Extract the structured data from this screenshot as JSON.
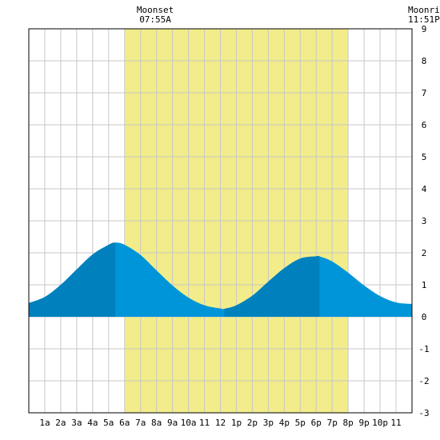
{
  "chart_data": {
    "type": "area",
    "title": "",
    "xlabel": "",
    "ylabel": "",
    "x_unit": "hour of day",
    "xlim": [
      0,
      24
    ],
    "ylim": [
      -3,
      9
    ],
    "y_ticks": [
      -3,
      -2,
      -1,
      0,
      1,
      2,
      3,
      4,
      5,
      6,
      7,
      8,
      9
    ],
    "x_ticks": [
      {
        "x": 1,
        "label": "1a"
      },
      {
        "x": 2,
        "label": "2a"
      },
      {
        "x": 3,
        "label": "3a"
      },
      {
        "x": 4,
        "label": "4a"
      },
      {
        "x": 5,
        "label": "5a"
      },
      {
        "x": 6,
        "label": "6a"
      },
      {
        "x": 7,
        "label": "7a"
      },
      {
        "x": 8,
        "label": "8a"
      },
      {
        "x": 9,
        "label": "9a"
      },
      {
        "x": 10,
        "label": "10a"
      },
      {
        "x": 11,
        "label": "11"
      },
      {
        "x": 12,
        "label": "12"
      },
      {
        "x": 13,
        "label": "1p"
      },
      {
        "x": 14,
        "label": "2p"
      },
      {
        "x": 15,
        "label": "3p"
      },
      {
        "x": 16,
        "label": "4p"
      },
      {
        "x": 17,
        "label": "5p"
      },
      {
        "x": 18,
        "label": "6p"
      },
      {
        "x": 19,
        "label": "7p"
      },
      {
        "x": 20,
        "label": "8p"
      },
      {
        "x": 21,
        "label": "9p"
      },
      {
        "x": 22,
        "label": "10p"
      },
      {
        "x": 23,
        "label": "11"
      }
    ],
    "grid": true,
    "daylight": {
      "start": 6,
      "end": 20,
      "color": "#f2ec8a"
    },
    "annotations": [
      {
        "label": "Moonset",
        "time": "07:55A",
        "x": 7.92
      },
      {
        "label": "Moonrise",
        "time": "11:51P",
        "x": 23.85
      }
    ],
    "series": [
      {
        "color_light": "#0095d8",
        "color_dark": "#0080bd",
        "x": [
          0,
          1,
          2,
          3,
          4,
          5,
          5.42,
          6,
          7,
          8,
          9,
          10,
          11,
          12,
          12.25,
          13,
          14,
          15,
          16,
          17,
          18,
          18.2,
          19,
          20,
          21,
          22,
          23,
          24
        ],
        "values": [
          0.43,
          0.62,
          1.0,
          1.48,
          1.95,
          2.25,
          2.32,
          2.25,
          1.93,
          1.45,
          0.98,
          0.6,
          0.36,
          0.26,
          0.25,
          0.36,
          0.66,
          1.1,
          1.52,
          1.82,
          1.89,
          1.89,
          1.73,
          1.38,
          0.98,
          0.65,
          0.45,
          0.4
        ]
      }
    ],
    "shading_intervals": [
      [
        0,
        5.42
      ],
      [
        12.25,
        18.2
      ]
    ]
  }
}
